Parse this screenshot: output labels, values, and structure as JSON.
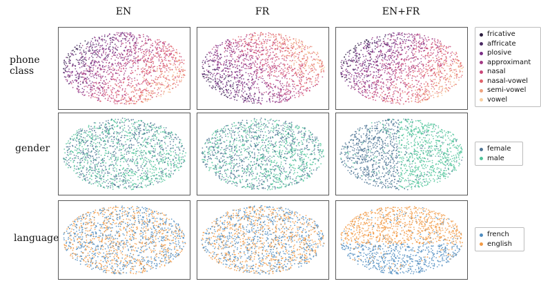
{
  "columns": [
    "EN",
    "FR",
    "EN+FR"
  ],
  "rows": [
    {
      "label": "phone\nclass",
      "key": "phone_class"
    },
    {
      "label": "gender",
      "key": "gender"
    },
    {
      "label": "language",
      "key": "language"
    }
  ],
  "legends": {
    "phone_class": {
      "labels": [
        "fricative",
        "affricate",
        "plosive",
        "approximant",
        "nasal",
        "nasal-vowel",
        "semi-vowel",
        "vowel"
      ],
      "colors": [
        "#2b1d3e",
        "#4a2a63",
        "#7b2f86",
        "#a23b84",
        "#c9477a",
        "#e0626a",
        "#eea27e",
        "#f8cfa0"
      ]
    },
    "gender": {
      "labels": [
        "female",
        "male"
      ],
      "colors": [
        "#4e7494",
        "#50c49a"
      ]
    },
    "language": {
      "labels": [
        "french",
        "english"
      ],
      "colors": [
        "#4f8cbf",
        "#f29a45"
      ]
    }
  },
  "chart_data": {
    "type": "scatter",
    "description_grid": "3x3 t-SNE scatter panels",
    "columns": [
      "EN",
      "FR",
      "EN+FR"
    ],
    "rows": [
      "phone class",
      "gender",
      "language"
    ],
    "axes": "none"
  }
}
